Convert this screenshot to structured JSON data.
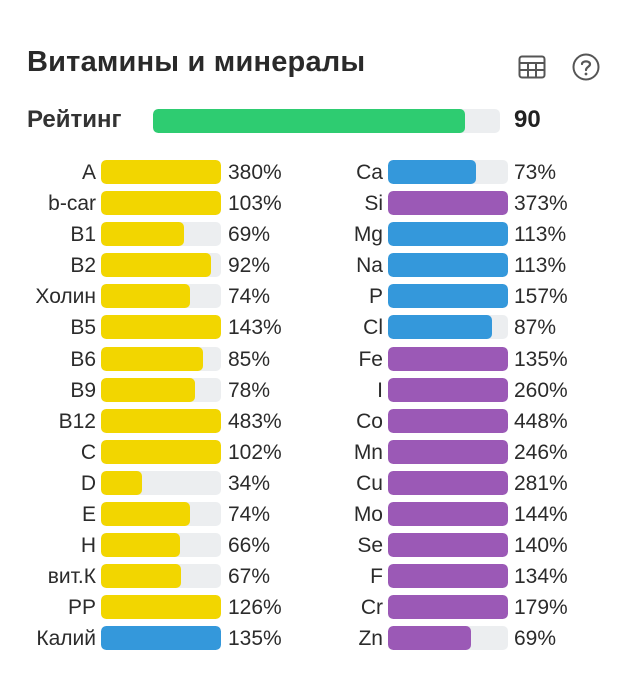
{
  "header": {
    "title": "Витамины и минералы",
    "table_icon": "table-icon",
    "help_icon": "help-icon"
  },
  "rating": {
    "label": "Рейтинг",
    "value": "90",
    "fraction": 0.9,
    "color": "#2ecc71"
  },
  "colors": {
    "yellow": "#f2d600",
    "blue": "#3498db",
    "purple": "#9b59b6",
    "track": "#eceef0"
  },
  "left": [
    {
      "name": "A",
      "pct": "380%",
      "value": 380,
      "color": "yellow"
    },
    {
      "name": "b-car",
      "pct": "103%",
      "value": 103,
      "color": "yellow"
    },
    {
      "name": "B1",
      "pct": "69%",
      "value": 69,
      "color": "yellow"
    },
    {
      "name": "B2",
      "pct": "92%",
      "value": 92,
      "color": "yellow"
    },
    {
      "name": "Холин",
      "pct": "74%",
      "value": 74,
      "color": "yellow"
    },
    {
      "name": "B5",
      "pct": "143%",
      "value": 143,
      "color": "yellow"
    },
    {
      "name": "B6",
      "pct": "85%",
      "value": 85,
      "color": "yellow"
    },
    {
      "name": "B9",
      "pct": "78%",
      "value": 78,
      "color": "yellow"
    },
    {
      "name": "B12",
      "pct": "483%",
      "value": 483,
      "color": "yellow"
    },
    {
      "name": "C",
      "pct": "102%",
      "value": 102,
      "color": "yellow"
    },
    {
      "name": "D",
      "pct": "34%",
      "value": 34,
      "color": "yellow"
    },
    {
      "name": "E",
      "pct": "74%",
      "value": 74,
      "color": "yellow"
    },
    {
      "name": "H",
      "pct": "66%",
      "value": 66,
      "color": "yellow"
    },
    {
      "name": "вит.К",
      "pct": "67%",
      "value": 67,
      "color": "yellow"
    },
    {
      "name": "PP",
      "pct": "126%",
      "value": 126,
      "color": "yellow"
    },
    {
      "name": "Калий",
      "pct": "135%",
      "value": 135,
      "color": "blue"
    }
  ],
  "right": [
    {
      "name": "Ca",
      "pct": "73%",
      "value": 73,
      "color": "blue"
    },
    {
      "name": "Si",
      "pct": "373%",
      "value": 373,
      "color": "purple"
    },
    {
      "name": "Mg",
      "pct": "113%",
      "value": 113,
      "color": "blue"
    },
    {
      "name": "Na",
      "pct": "113%",
      "value": 113,
      "color": "blue"
    },
    {
      "name": "P",
      "pct": "157%",
      "value": 157,
      "color": "blue"
    },
    {
      "name": "Cl",
      "pct": "87%",
      "value": 87,
      "color": "blue"
    },
    {
      "name": "Fe",
      "pct": "135%",
      "value": 135,
      "color": "purple"
    },
    {
      "name": "I",
      "pct": "260%",
      "value": 260,
      "color": "purple"
    },
    {
      "name": "Co",
      "pct": "448%",
      "value": 448,
      "color": "purple"
    },
    {
      "name": "Mn",
      "pct": "246%",
      "value": 246,
      "color": "purple"
    },
    {
      "name": "Cu",
      "pct": "281%",
      "value": 281,
      "color": "purple"
    },
    {
      "name": "Mo",
      "pct": "144%",
      "value": 144,
      "color": "purple"
    },
    {
      "name": "Se",
      "pct": "140%",
      "value": 140,
      "color": "purple"
    },
    {
      "name": "F",
      "pct": "134%",
      "value": 134,
      "color": "purple"
    },
    {
      "name": "Cr",
      "pct": "179%",
      "value": 179,
      "color": "purple"
    },
    {
      "name": "Zn",
      "pct": "69%",
      "value": 69,
      "color": "purple"
    }
  ]
}
